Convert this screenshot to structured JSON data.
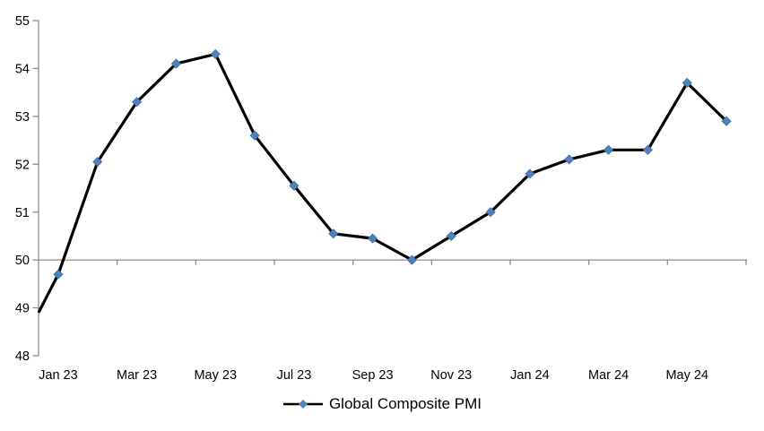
{
  "chart_data": {
    "type": "line",
    "title": "",
    "legend": {
      "position": "bottom",
      "entries": [
        "Global Composite PMI"
      ]
    },
    "x": {
      "categories": [
        "Jan 23",
        "Feb 23",
        "Mar 23",
        "Apr 23",
        "May 23",
        "Jun 23",
        "Jul 23",
        "Aug 23",
        "Sep 23",
        "Oct 23",
        "Nov 23",
        "Dec 23",
        "Jan 24",
        "Feb 24",
        "Mar 24",
        "Apr 24",
        "May 24",
        "Jun 24"
      ],
      "tick_label_interval": 2,
      "labels_shown": [
        "Jan 23",
        "Mar 23",
        "May 23",
        "Jul 23",
        "Sep 23",
        "Nov 23",
        "Jan 24",
        "Mar 24",
        "May 24"
      ],
      "boundary_tick_interval": 2
    },
    "y": {
      "min": 48,
      "max": 55,
      "tick_step": 1,
      "tick_labels": [
        "48",
        "49",
        "50",
        "51",
        "52",
        "53",
        "54",
        "55"
      ],
      "axis_crosses_x_at": 50
    },
    "series": [
      {
        "name": "Global Composite PMI",
        "values": [
          49.7,
          52.05,
          53.3,
          54.1,
          54.3,
          52.6,
          51.55,
          50.55,
          50.45,
          50.0,
          50.5,
          51.0,
          51.8,
          52.1,
          52.3,
          52.3,
          53.7,
          52.9
        ],
        "line_color": "#000000",
        "marker": "diamond",
        "marker_color": "#4F81BD",
        "marker_edge_color": "#3A6EA5"
      }
    ],
    "left_edge_entry_value": 48.9,
    "grid": "off",
    "axis_color": "#8E8E8E"
  }
}
